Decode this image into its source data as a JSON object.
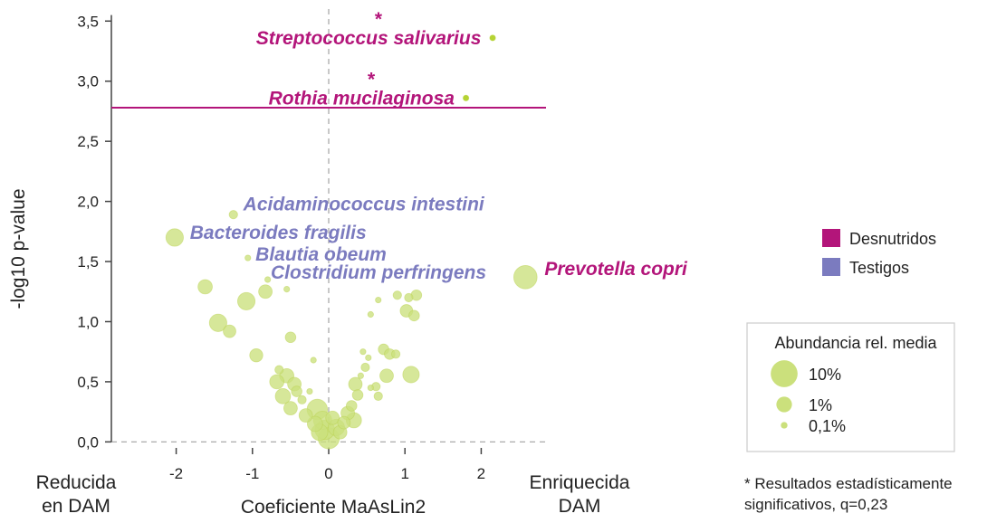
{
  "colors": {
    "bubble": "#b5d334",
    "bubble_fill": "#c4dd5a",
    "bubble_light": "#cbe07c",
    "desnutridos": "#b3157a",
    "testigos": "#7b7bbf",
    "axis": "#444444",
    "zero_line": "#aaaaaa"
  },
  "chart_data": {
    "type": "scatter",
    "xlabel": "Coeficiente MaAsLin2",
    "ylabel": "-log10 p-value",
    "xlim": [
      -2.85,
      2.85
    ],
    "ylim": [
      -0.05,
      3.6
    ],
    "x_ticks": [
      {
        "value": -2,
        "label": "-2"
      },
      {
        "value": -1,
        "label": "-1"
      },
      {
        "value": 0,
        "label": "0"
      },
      {
        "value": 1,
        "label": "1"
      },
      {
        "value": 2,
        "label": "2"
      }
    ],
    "y_ticks": [
      {
        "value": 0.0,
        "label": "0,0"
      },
      {
        "value": 0.5,
        "label": "0,5"
      },
      {
        "value": 1.0,
        "label": "1,0"
      },
      {
        "value": 1.5,
        "label": "1,5"
      },
      {
        "value": 2.0,
        "label": "2,0"
      },
      {
        "value": 2.5,
        "label": "2,5"
      },
      {
        "value": 3.0,
        "label": "3,0"
      },
      {
        "value": 3.5,
        "label": "3,5"
      }
    ],
    "significance_threshold": 2.78,
    "left_side_label": [
      "Reducida",
      "en DAM"
    ],
    "right_side_label": [
      "Enriquecida",
      "DAM"
    ],
    "points": [
      {
        "name": "Streptococcus salivarius",
        "x": 2.15,
        "y": 3.36,
        "abundance": 0.15
      },
      {
        "name": "Rothia mucilaginosa",
        "x": 1.8,
        "y": 2.86,
        "abundance": 0.03
      },
      {
        "name": "Prevotella copri",
        "x": 2.58,
        "y": 1.37,
        "abundance": 10
      },
      {
        "name": "Bacteroides fragilis",
        "x": -2.02,
        "y": 1.7,
        "abundance": 2.5
      },
      {
        "name": "Acidaminococcus intestini",
        "x": -1.25,
        "y": 1.89,
        "abundance": 0.3
      },
      {
        "name": "Blautia obeum",
        "x": -1.06,
        "y": 1.53,
        "abundance": 0.1
      },
      {
        "name": "Clostridium perfringens",
        "x": -0.8,
        "y": 1.35,
        "abundance": 0.15
      },
      {
        "name": "",
        "x": -1.62,
        "y": 1.29,
        "abundance": 1.2
      },
      {
        "name": "",
        "x": -1.08,
        "y": 1.17,
        "abundance": 2.5
      },
      {
        "name": "",
        "x": -0.83,
        "y": 1.25,
        "abundance": 1.0
      },
      {
        "name": "",
        "x": -0.55,
        "y": 1.27,
        "abundance": 0.15
      },
      {
        "name": "",
        "x": -1.45,
        "y": 0.99,
        "abundance": 2.5
      },
      {
        "name": "",
        "x": -1.3,
        "y": 0.92,
        "abundance": 0.8
      },
      {
        "name": "",
        "x": -0.5,
        "y": 0.87,
        "abundance": 0.5
      },
      {
        "name": "",
        "x": -0.95,
        "y": 0.72,
        "abundance": 0.9
      },
      {
        "name": "",
        "x": -0.65,
        "y": 0.6,
        "abundance": 0.3
      },
      {
        "name": "",
        "x": -0.55,
        "y": 0.55,
        "abundance": 1.2
      },
      {
        "name": "",
        "x": -0.68,
        "y": 0.5,
        "abundance": 1.2
      },
      {
        "name": "",
        "x": -0.45,
        "y": 0.48,
        "abundance": 1.0
      },
      {
        "name": "",
        "x": -0.2,
        "y": 0.68,
        "abundance": 0.1
      },
      {
        "name": "",
        "x": -0.6,
        "y": 0.38,
        "abundance": 1.5
      },
      {
        "name": "",
        "x": -0.42,
        "y": 0.42,
        "abundance": 0.5
      },
      {
        "name": "",
        "x": -0.5,
        "y": 0.28,
        "abundance": 1.0
      },
      {
        "name": "",
        "x": -0.35,
        "y": 0.35,
        "abundance": 0.3
      },
      {
        "name": "",
        "x": -0.25,
        "y": 0.42,
        "abundance": 0.05
      },
      {
        "name": "",
        "x": -0.3,
        "y": 0.22,
        "abundance": 1.0
      },
      {
        "name": "",
        "x": -0.18,
        "y": 0.15,
        "abundance": 1.5
      },
      {
        "name": "",
        "x": -0.15,
        "y": 0.27,
        "abundance": 5
      },
      {
        "name": "",
        "x": -0.08,
        "y": 0.18,
        "abundance": 3
      },
      {
        "name": "",
        "x": -0.05,
        "y": 0.1,
        "abundance": 4
      },
      {
        "name": "",
        "x": 0.0,
        "y": 0.03,
        "abundance": 6
      },
      {
        "name": "",
        "x": 0.05,
        "y": 0.2,
        "abundance": 1
      },
      {
        "name": "",
        "x": 0.1,
        "y": 0.12,
        "abundance": 2
      },
      {
        "name": "",
        "x": -0.12,
        "y": 0.08,
        "abundance": 2
      },
      {
        "name": "",
        "x": 0.15,
        "y": 0.08,
        "abundance": 1
      },
      {
        "name": "",
        "x": 0.2,
        "y": 0.16,
        "abundance": 0.8
      },
      {
        "name": "",
        "x": 0.25,
        "y": 0.24,
        "abundance": 1
      },
      {
        "name": "",
        "x": 0.33,
        "y": 0.18,
        "abundance": 1.5
      },
      {
        "name": "",
        "x": 0.3,
        "y": 0.3,
        "abundance": 0.5
      },
      {
        "name": "",
        "x": 0.38,
        "y": 0.39,
        "abundance": 0.5
      },
      {
        "name": "",
        "x": 0.35,
        "y": 0.48,
        "abundance": 1
      },
      {
        "name": "",
        "x": 0.42,
        "y": 0.55,
        "abundance": 0.1
      },
      {
        "name": "",
        "x": 0.48,
        "y": 0.62,
        "abundance": 0.3
      },
      {
        "name": "",
        "x": 0.52,
        "y": 0.7,
        "abundance": 0.1
      },
      {
        "name": "",
        "x": 0.45,
        "y": 0.75,
        "abundance": 0.05
      },
      {
        "name": "",
        "x": 0.55,
        "y": 0.45,
        "abundance": 0.1
      },
      {
        "name": "",
        "x": 0.62,
        "y": 0.46,
        "abundance": 0.3
      },
      {
        "name": "",
        "x": 0.65,
        "y": 0.38,
        "abundance": 0.3
      },
      {
        "name": "",
        "x": 0.72,
        "y": 0.77,
        "abundance": 0.5
      },
      {
        "name": "",
        "x": 0.8,
        "y": 0.73,
        "abundance": 0.5
      },
      {
        "name": "",
        "x": 0.88,
        "y": 0.73,
        "abundance": 0.3
      },
      {
        "name": "",
        "x": 0.76,
        "y": 0.55,
        "abundance": 1
      },
      {
        "name": "",
        "x": 1.08,
        "y": 0.56,
        "abundance": 2
      },
      {
        "name": "",
        "x": 0.9,
        "y": 1.22,
        "abundance": 0.3
      },
      {
        "name": "",
        "x": 1.05,
        "y": 1.2,
        "abundance": 0.3
      },
      {
        "name": "",
        "x": 1.15,
        "y": 1.22,
        "abundance": 0.5
      },
      {
        "name": "",
        "x": 1.02,
        "y": 1.09,
        "abundance": 0.8
      },
      {
        "name": "",
        "x": 1.12,
        "y": 1.05,
        "abundance": 0.5
      },
      {
        "name": "",
        "x": 0.65,
        "y": 1.18,
        "abundance": 0.05
      },
      {
        "name": "",
        "x": 0.55,
        "y": 1.06,
        "abundance": 0.05
      }
    ],
    "annotations": [
      {
        "text": "Streptococcus salivarius",
        "group": "desnutridos",
        "star": true,
        "x": 2.0,
        "y": 3.36,
        "anchor": "end"
      },
      {
        "text": "Rothia mucilaginosa",
        "group": "desnutridos",
        "star": true,
        "x": 1.65,
        "y": 2.86,
        "anchor": "end"
      },
      {
        "text": "Prevotella copri",
        "group": "desnutridos",
        "star": false,
        "x": 2.83,
        "y": 1.44,
        "anchor": "start"
      },
      {
        "text": "Acidaminococcus intestini",
        "group": "testigos",
        "star": false,
        "x": -1.12,
        "y": 1.98,
        "anchor": "start"
      },
      {
        "text": "Bacteroides fragilis",
        "group": "testigos",
        "star": false,
        "x": -1.82,
        "y": 1.74,
        "anchor": "start"
      },
      {
        "text": "Blautia obeum",
        "group": "testigos",
        "star": false,
        "x": -0.96,
        "y": 1.56,
        "anchor": "start"
      },
      {
        "text": "Clostridium perfringens",
        "group": "testigos",
        "star": false,
        "x": -0.76,
        "y": 1.41,
        "anchor": "start"
      }
    ]
  },
  "legend": {
    "groups": [
      {
        "label": "Desnutridos",
        "key": "desnutridos"
      },
      {
        "label": "Testigos",
        "key": "testigos"
      }
    ],
    "size_title": "Abundancia rel. media",
    "sizes": [
      {
        "label": "10%",
        "abundance": 10
      },
      {
        "label": "1%",
        "abundance": 1
      },
      {
        "label": "0,1%",
        "abundance": 0.1
      }
    ]
  },
  "footnote": [
    "* Resultados estadísticamente",
    "significativos, q=0,23"
  ]
}
